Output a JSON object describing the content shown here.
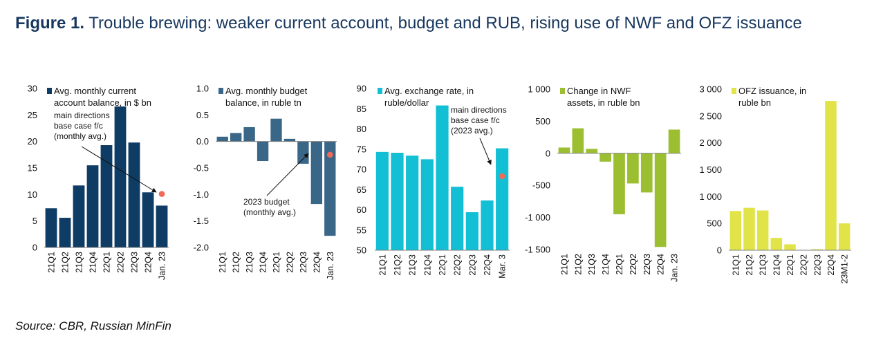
{
  "figure": {
    "label": "Figure 1.",
    "title": "Trouble brewing: weaker current account, budget and RUB, rising use of NWF and OFZ issuance",
    "source": "Source: CBR, Russian MinFin"
  },
  "colors": {
    "title": "#17375e",
    "current_account": "#0f3c64",
    "budget": "#3a6688",
    "rub": "#12bfd4",
    "nwf": "#9cbf32",
    "ofz": "#e1e448",
    "marker": "#ef6a57",
    "text": "#111111"
  },
  "chart_data": [
    {
      "type": "bar",
      "title": "Avg. monthly current account balance, in $ bn",
      "legend": [
        "Avg. monthly current",
        "account balance, in $ bn"
      ],
      "categories": [
        "21Q1",
        "21Q2",
        "21Q3",
        "21Q4",
        "22Q1",
        "22Q2",
        "22Q3",
        "22Q4",
        "Jan. 23"
      ],
      "values": [
        7.4,
        5.6,
        11.7,
        15.5,
        19.3,
        26.6,
        19.8,
        10.4,
        7.9
      ],
      "ylim": [
        0,
        30
      ],
      "yticks": [
        0,
        5,
        10,
        15,
        20,
        25,
        30
      ],
      "ytick_labels": [
        "0",
        "5",
        "10",
        "15",
        "20",
        "25",
        "30"
      ],
      "marker": {
        "category": "Jan. 23",
        "value": 10.1
      },
      "annotation": [
        "main directions",
        "base case f/c",
        "(monthly avg.)"
      ]
    },
    {
      "type": "bar",
      "title": "Avg. monthly budget balance, in ruble tn",
      "legend": [
        "Avg. monthly budget",
        "balance, in ruble tn"
      ],
      "categories": [
        "21Q1",
        "21Q2",
        "21Q3",
        "21Q4",
        "22Q1",
        "22Q2",
        "22Q3",
        "22Q4",
        "Jan. 23"
      ],
      "values": [
        0.09,
        0.16,
        0.27,
        -0.37,
        0.43,
        0.05,
        -0.42,
        -1.18,
        -1.78
      ],
      "ylim": [
        -2.0,
        1.0
      ],
      "yticks": [
        -2.0,
        -1.5,
        -1.0,
        -0.5,
        0.0,
        0.5,
        1.0
      ],
      "ytick_labels": [
        "-2.0",
        "-1.5",
        "-1.0",
        "-0.5",
        "0.0",
        "0.5",
        "1.0"
      ],
      "marker": {
        "category": "Jan. 23",
        "value": -0.25
      },
      "annotation": [
        "2023 budget",
        "(monthly avg.)"
      ]
    },
    {
      "type": "bar",
      "title": "Avg. exchange rate, in ruble/dollar",
      "legend": [
        "Avg. exchange rate, in",
        "ruble/dollar"
      ],
      "categories": [
        "21Q1",
        "21Q2",
        "21Q3",
        "21Q4",
        "22Q1",
        "22Q2",
        "22Q3",
        "22Q4",
        "Mar. 3"
      ],
      "values": [
        74.3,
        74.1,
        73.4,
        72.5,
        85.8,
        65.7,
        59.4,
        62.3,
        75.2
      ],
      "ylim": [
        50,
        90
      ],
      "yticks": [
        50,
        55,
        60,
        65,
        70,
        75,
        80,
        85,
        90
      ],
      "ytick_labels": [
        "50",
        "55",
        "60",
        "65",
        "70",
        "75",
        "80",
        "85",
        "90"
      ],
      "marker": {
        "category": "Mar. 3",
        "value": 68.3
      },
      "annotation": [
        "main directions",
        "base case f/c",
        "(2023 avg.)"
      ]
    },
    {
      "type": "bar",
      "title": "Change in NWF assets, in ruble bn",
      "legend": [
        "Change in NWF",
        "assets, in ruble bn"
      ],
      "categories": [
        "21Q1",
        "21Q2",
        "21Q3",
        "21Q4",
        "22Q1",
        "22Q2",
        "22Q3",
        "22Q4",
        "Jan. 23"
      ],
      "values": [
        90,
        390,
        70,
        -130,
        -950,
        -470,
        -610,
        -1460,
        370
      ],
      "ylim": [
        -1500,
        1000
      ],
      "yticks": [
        -1500,
        -1000,
        -500,
        0,
        500,
        1000
      ],
      "ytick_labels": [
        "-1 500",
        "-1 000",
        "-500",
        "0",
        "500",
        "1 000"
      ]
    },
    {
      "type": "bar",
      "title": "OFZ issuance, in ruble bn",
      "legend": [
        "OFZ issuance, in",
        "ruble bn"
      ],
      "categories": [
        "21Q1",
        "21Q2",
        "21Q3",
        "21Q4",
        "22Q1",
        "22Q2",
        "22Q3",
        "22Q4",
        "23M1-2"
      ],
      "values": [
        730,
        790,
        740,
        230,
        110,
        0,
        20,
        2780,
        500
      ],
      "ylim": [
        0,
        3000
      ],
      "yticks": [
        0,
        500,
        1000,
        1500,
        2000,
        2500,
        3000
      ],
      "ytick_labels": [
        "0",
        "500",
        "1 000",
        "1 500",
        "2 000",
        "2 500",
        "3 000"
      ]
    }
  ]
}
